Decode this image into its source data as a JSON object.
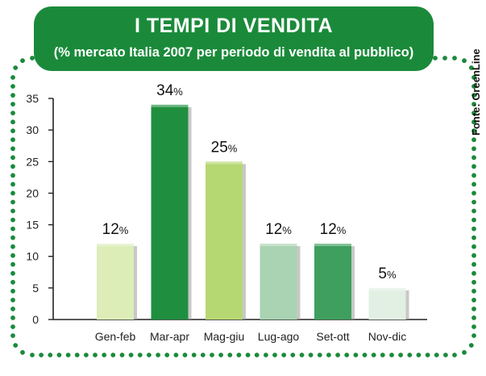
{
  "header": {
    "title": "I TEMPI DI VENDITA",
    "subtitle": "(% mercato Italia 2007 per periodo di vendita al pubblico)"
  },
  "source": "Fonte: GreenLine",
  "colors": {
    "header_bg": "#1a8a3a",
    "dotted_border": "#1a8a3a",
    "axis": "#222222"
  },
  "chart_data": {
    "type": "bar",
    "categories": [
      "Gen-feb",
      "Mar-apr",
      "Mag-giu",
      "Lug-ago",
      "Set-ott",
      "Nov-dic"
    ],
    "values": [
      12,
      34,
      25,
      12,
      12,
      5
    ],
    "value_labels": [
      "12%",
      "34%",
      "25%",
      "12%",
      "12%",
      "5%"
    ],
    "bar_colors": [
      "#dcedb8",
      "#1f8f3f",
      "#b6d872",
      "#a9d3b2",
      "#3f9f5e",
      "#e1f0e3"
    ],
    "ylim": [
      0,
      35
    ],
    "yticks": [
      0,
      5,
      10,
      15,
      20,
      25,
      30,
      35
    ],
    "grid": false,
    "xlabel": "",
    "ylabel": ""
  }
}
